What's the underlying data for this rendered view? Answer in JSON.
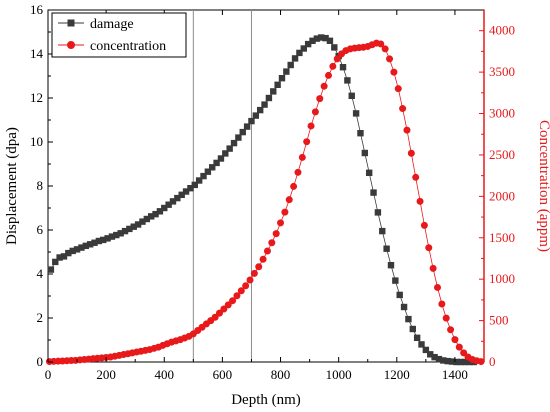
{
  "chart_data": {
    "type": "scatter",
    "xlabel": "Depth (nm)",
    "ylabel": "Displacement (dpa)",
    "y2label": "Concentration (appm)",
    "xlim": [
      0,
      1500
    ],
    "ylim": [
      0,
      16
    ],
    "y2lim": [
      0,
      4250
    ],
    "xticks": [
      0,
      200,
      400,
      600,
      800,
      1000,
      1200,
      1400
    ],
    "yticks": [
      0,
      2,
      4,
      6,
      8,
      10,
      12,
      14,
      16
    ],
    "y2ticks": [
      0,
      500,
      1000,
      1500,
      2000,
      2500,
      3000,
      3500,
      4000
    ],
    "vlines": [
      500,
      700
    ],
    "legend_position": "top-left",
    "grid": false,
    "colors": {
      "damage": "#3a3a3a",
      "concentration": "#e8191b",
      "right_axis": "#e8191b",
      "vline": "#8c8c8c"
    },
    "series": [
      {
        "name": "damage",
        "axis": "left",
        "marker": "square",
        "x": [
          10,
          25,
          40,
          55,
          70,
          85,
          100,
          115,
          130,
          145,
          160,
          175,
          190,
          205,
          220,
          235,
          250,
          265,
          280,
          295,
          310,
          325,
          340,
          355,
          370,
          385,
          400,
          415,
          430,
          445,
          460,
          475,
          490,
          505,
          520,
          535,
          550,
          565,
          580,
          595,
          610,
          625,
          640,
          655,
          670,
          685,
          700,
          715,
          730,
          745,
          760,
          775,
          790,
          805,
          820,
          835,
          850,
          865,
          880,
          895,
          910,
          925,
          940,
          955,
          970,
          985,
          1000,
          1015,
          1030,
          1045,
          1060,
          1075,
          1090,
          1105,
          1120,
          1135,
          1150,
          1165,
          1180,
          1195,
          1210,
          1225,
          1240,
          1255,
          1270,
          1285,
          1300,
          1315,
          1330,
          1345,
          1360,
          1375,
          1390,
          1405,
          1420,
          1435,
          1450,
          1465
        ],
        "y": [
          4.2,
          4.55,
          4.75,
          4.8,
          4.95,
          5.05,
          5.12,
          5.2,
          5.28,
          5.35,
          5.42,
          5.5,
          5.55,
          5.62,
          5.7,
          5.77,
          5.85,
          5.95,
          6.05,
          6.15,
          6.25,
          6.38,
          6.5,
          6.62,
          6.72,
          6.85,
          7.0,
          7.15,
          7.3,
          7.45,
          7.6,
          7.75,
          7.9,
          8.05,
          8.25,
          8.45,
          8.65,
          8.85,
          9.05,
          9.25,
          9.48,
          9.7,
          9.95,
          10.2,
          10.45,
          10.7,
          10.95,
          11.2,
          11.45,
          11.7,
          12.0,
          12.3,
          12.6,
          12.9,
          13.2,
          13.5,
          13.8,
          14.05,
          14.25,
          14.45,
          14.6,
          14.7,
          14.75,
          14.72,
          14.6,
          14.3,
          13.9,
          13.4,
          12.8,
          12.1,
          11.3,
          10.4,
          9.5,
          8.6,
          7.7,
          6.8,
          5.95,
          5.15,
          4.4,
          3.7,
          3.05,
          2.5,
          1.95,
          1.5,
          1.1,
          0.8,
          0.55,
          0.35,
          0.22,
          0.13,
          0.07,
          0.04,
          0.02,
          0.0,
          0.0,
          0.0,
          0.0,
          0.0
        ]
      },
      {
        "name": "concentration",
        "axis": "right",
        "marker": "circle",
        "x": [
          5,
          20,
          35,
          50,
          65,
          80,
          95,
          110,
          125,
          140,
          155,
          170,
          185,
          200,
          215,
          230,
          245,
          260,
          275,
          290,
          305,
          320,
          335,
          350,
          365,
          380,
          395,
          410,
          425,
          440,
          455,
          470,
          485,
          500,
          515,
          530,
          545,
          560,
          575,
          590,
          605,
          620,
          635,
          650,
          665,
          680,
          695,
          710,
          725,
          740,
          755,
          770,
          785,
          800,
          815,
          830,
          845,
          860,
          875,
          890,
          905,
          920,
          935,
          950,
          965,
          980,
          995,
          1010,
          1025,
          1040,
          1055,
          1070,
          1085,
          1100,
          1115,
          1130,
          1145,
          1160,
          1175,
          1190,
          1205,
          1220,
          1235,
          1250,
          1265,
          1280,
          1295,
          1310,
          1325,
          1340,
          1355,
          1370,
          1385,
          1400,
          1415,
          1430,
          1445,
          1460,
          1475,
          1490
        ],
        "y": [
          5,
          8,
          10,
          12,
          15,
          18,
          20,
          25,
          30,
          35,
          40,
          45,
          50,
          55,
          60,
          70,
          80,
          90,
          100,
          110,
          120,
          130,
          140,
          150,
          165,
          180,
          200,
          220,
          240,
          255,
          270,
          290,
          310,
          340,
          380,
          420,
          460,
          500,
          540,
          590,
          640,
          690,
          740,
          800,
          860,
          920,
          990,
          1070,
          1150,
          1240,
          1340,
          1440,
          1550,
          1680,
          1810,
          1960,
          2120,
          2290,
          2470,
          2660,
          2850,
          3020,
          3180,
          3330,
          3460,
          3570,
          3660,
          3720,
          3760,
          3780,
          3790,
          3795,
          3800,
          3810,
          3830,
          3850,
          3840,
          3780,
          3660,
          3500,
          3300,
          3060,
          2800,
          2520,
          2230,
          1940,
          1650,
          1380,
          1130,
          900,
          700,
          530,
          390,
          270,
          180,
          110,
          60,
          30,
          15,
          5
        ]
      }
    ]
  }
}
